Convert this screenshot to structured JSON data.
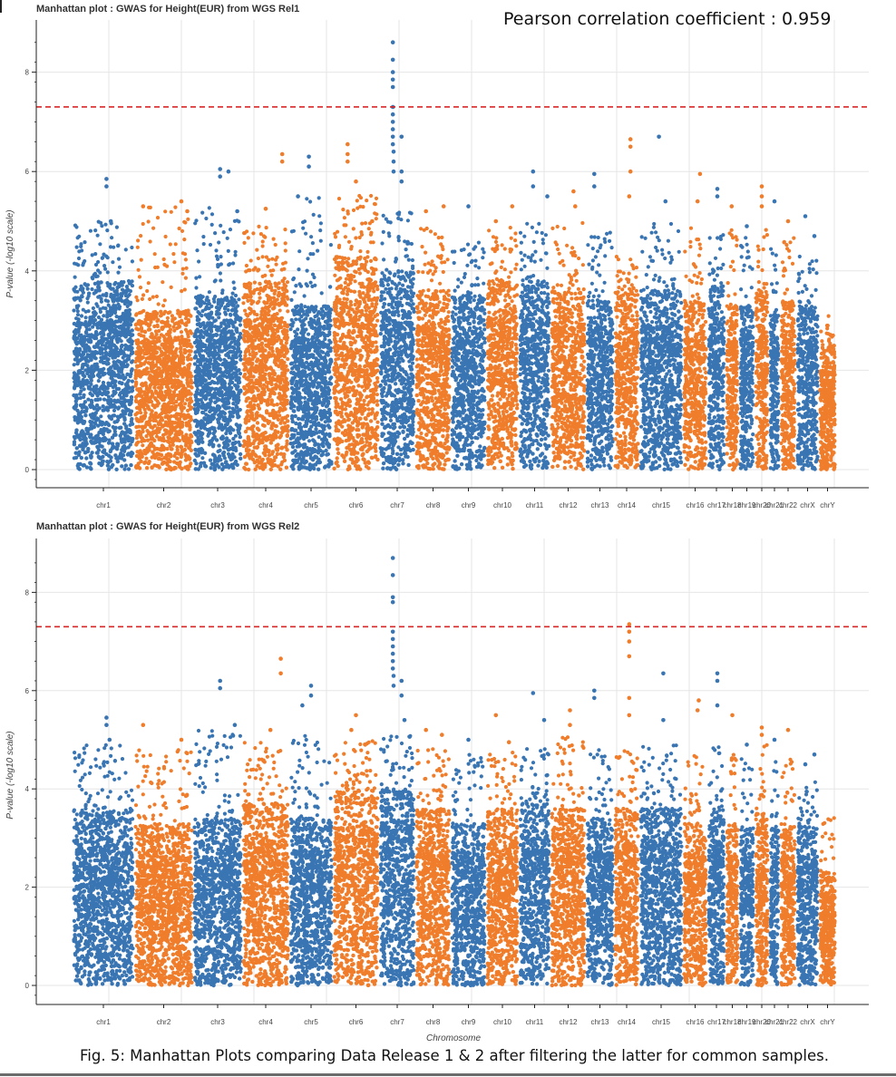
{
  "correlation_text": "Pearson correlation coefficient : 0.959",
  "caption": "Fig. 5: Manhattan Plots comparing Data Release 1 & 2 after filtering the latter for common samples.",
  "colors": {
    "blue": "#3a75b3",
    "orange": "#ef7d2b",
    "threshold": "#d62728",
    "grid": "#e6e6e6",
    "axis": "#222222"
  },
  "chart_data": [
    {
      "type": "scatter",
      "title": "Manhattan plot : GWAS for Height(EUR) from WGS Rel1",
      "ylabel": "P-value (-log10 scale)",
      "xlabel": "",
      "ylim": [
        -0.2,
        8.8
      ],
      "yticks": [
        0,
        2,
        4,
        6,
        8
      ],
      "grid": true,
      "threshold": 7.3,
      "categories": [
        "chr1",
        "chr2",
        "chr3",
        "chr4",
        "chr5",
        "chr6",
        "chr7",
        "chr8",
        "chr9",
        "chr10",
        "chr11",
        "chr12",
        "chr13",
        "chr14",
        "chr15",
        "chr16",
        "chr17",
        "chr18",
        "chr19",
        "chr20",
        "chr21",
        "chr22",
        "chrX",
        "chrY"
      ],
      "series": [
        {
          "chr": "chr1",
          "bulk_max": 3.8,
          "tail_max": 5.0,
          "peaks": [
            [
              0.55,
              5.85
            ],
            [
              0.55,
              5.7
            ],
            [
              0.62,
              5.0
            ]
          ]
        },
        {
          "chr": "chr2",
          "bulk_max": 3.2,
          "tail_max": 5.3,
          "peaks": [
            [
              0.15,
              5.3
            ],
            [
              0.8,
              5.4
            ],
            [
              0.9,
              5.2
            ]
          ]
        },
        {
          "chr": "chr3",
          "bulk_max": 3.5,
          "tail_max": 5.3,
          "peaks": [
            [
              0.55,
              6.05
            ],
            [
              0.55,
              5.9
            ],
            [
              0.72,
              6.0
            ],
            [
              0.9,
              5.2
            ]
          ]
        },
        {
          "chr": "chr4",
          "bulk_max": 3.8,
          "tail_max": 4.9,
          "peaks": [
            [
              0.85,
              6.35
            ],
            [
              0.85,
              6.2
            ],
            [
              0.5,
              5.25
            ]
          ]
        },
        {
          "chr": "chr5",
          "bulk_max": 3.3,
          "tail_max": 5.5,
          "peaks": [
            [
              0.45,
              6.3
            ],
            [
              0.45,
              6.1
            ],
            [
              0.2,
              5.5
            ]
          ]
        },
        {
          "chr": "chr6",
          "bulk_max": 4.3,
          "tail_max": 5.6,
          "peaks": [
            [
              0.32,
              6.55
            ],
            [
              0.32,
              6.35
            ],
            [
              0.32,
              6.2
            ],
            [
              0.5,
              5.8
            ],
            [
              0.85,
              5.0
            ]
          ]
        },
        {
          "chr": "chr7",
          "bulk_max": 4.0,
          "tail_max": 5.2,
          "peaks": [
            [
              0.38,
              8.6
            ],
            [
              0.38,
              8.25
            ],
            [
              0.38,
              8.0
            ],
            [
              0.38,
              7.85
            ],
            [
              0.38,
              7.7
            ],
            [
              0.38,
              7.3
            ],
            [
              0.38,
              7.15
            ],
            [
              0.38,
              7.0
            ],
            [
              0.38,
              6.85
            ],
            [
              0.38,
              6.7
            ],
            [
              0.38,
              6.55
            ],
            [
              0.4,
              6.4
            ],
            [
              0.4,
              6.2
            ],
            [
              0.4,
              6.0
            ],
            [
              0.62,
              6.7
            ],
            [
              0.62,
              6.0
            ],
            [
              0.62,
              5.8
            ]
          ]
        },
        {
          "chr": "chr8",
          "bulk_max": 3.6,
          "tail_max": 4.9,
          "peaks": [
            [
              0.3,
              5.2
            ],
            [
              0.8,
              5.3
            ]
          ]
        },
        {
          "chr": "chr9",
          "bulk_max": 3.5,
          "tail_max": 4.6,
          "peaks": [
            [
              0.5,
              5.3
            ]
          ]
        },
        {
          "chr": "chr10",
          "bulk_max": 3.8,
          "tail_max": 4.9,
          "peaks": [
            [
              0.3,
              5.0
            ],
            [
              0.8,
              5.3
            ]
          ]
        },
        {
          "chr": "chr11",
          "bulk_max": 3.8,
          "tail_max": 5.0,
          "peaks": [
            [
              0.45,
              6.0
            ],
            [
              0.45,
              5.7
            ],
            [
              0.9,
              5.5
            ]
          ]
        },
        {
          "chr": "chr12",
          "bulk_max": 3.6,
          "tail_max": 5.0,
          "peaks": [
            [
              0.65,
              5.6
            ],
            [
              0.7,
              5.3
            ]
          ]
        },
        {
          "chr": "chr13",
          "bulk_max": 3.5,
          "tail_max": 4.8,
          "peaks": [
            [
              0.3,
              5.95
            ],
            [
              0.3,
              5.7
            ]
          ]
        },
        {
          "chr": "chr14",
          "bulk_max": 3.6,
          "tail_max": 4.3,
          "peaks": [
            [
              0.65,
              6.65
            ],
            [
              0.65,
              6.5
            ],
            [
              0.65,
              6.0
            ],
            [
              0.6,
              5.5
            ]
          ]
        },
        {
          "chr": "chr15",
          "bulk_max": 3.6,
          "tail_max": 5.0,
          "peaks": [
            [
              0.45,
              6.7
            ],
            [
              0.6,
              5.4
            ]
          ]
        },
        {
          "chr": "chr16",
          "bulk_max": 3.4,
          "tail_max": 4.9,
          "peaks": [
            [
              0.7,
              5.95
            ],
            [
              0.6,
              5.4
            ]
          ]
        },
        {
          "chr": "chr17",
          "bulk_max": 3.7,
          "tail_max": 5.0,
          "peaks": [
            [
              0.55,
              5.65
            ],
            [
              0.55,
              5.5
            ]
          ]
        },
        {
          "chr": "chr18",
          "bulk_max": 3.3,
          "tail_max": 5.0,
          "peaks": [
            [
              0.45,
              5.3
            ]
          ]
        },
        {
          "chr": "chr19",
          "bulk_max": 3.3,
          "tail_max": 4.7,
          "peaks": [
            [
              0.5,
              4.9
            ]
          ]
        },
        {
          "chr": "chr20",
          "bulk_max": 3.6,
          "tail_max": 5.0,
          "peaks": [
            [
              0.5,
              5.7
            ],
            [
              0.5,
              5.5
            ],
            [
              0.5,
              5.3
            ]
          ]
        },
        {
          "chr": "chr21",
          "bulk_max": 3.2,
          "tail_max": 4.7,
          "peaks": [
            [
              0.5,
              5.4
            ]
          ]
        },
        {
          "chr": "chr22",
          "bulk_max": 3.4,
          "tail_max": 4.7,
          "peaks": [
            [
              0.5,
              5.0
            ]
          ]
        },
        {
          "chr": "chrX",
          "bulk_max": 3.3,
          "tail_max": 4.3,
          "peaks": [
            [
              0.4,
              5.1
            ],
            [
              0.8,
              4.7
            ]
          ]
        },
        {
          "chr": "chrY",
          "bulk_max": 2.5,
          "tail_max": 3.2,
          "peaks": [
            [
              0.5,
              0.8
            ],
            [
              0.5,
              0.6
            ],
            [
              0.5,
              0.3
            ],
            [
              0.5,
              0.1
            ]
          ]
        }
      ]
    },
    {
      "type": "scatter",
      "title": "Manhattan plot : GWAS for Height(EUR) from WGS Rel2",
      "ylabel": "P-value (-log10 scale)",
      "xlabel": "Chromosome",
      "ylim": [
        -0.2,
        8.8
      ],
      "yticks": [
        0,
        2,
        4,
        6,
        8
      ],
      "grid": true,
      "threshold": 7.3,
      "categories": [
        "chr1",
        "chr2",
        "chr3",
        "chr4",
        "chr5",
        "chr6",
        "chr7",
        "chr8",
        "chr9",
        "chr10",
        "chr11",
        "chr12",
        "chr13",
        "chr14",
        "chr15",
        "chr16",
        "chr17",
        "chr18",
        "chr19",
        "chr20",
        "chr21",
        "chr22",
        "chrX",
        "chrY"
      ],
      "series": [
        {
          "chr": "chr1",
          "bulk_max": 3.6,
          "tail_max": 4.9,
          "peaks": [
            [
              0.55,
              5.45
            ],
            [
              0.55,
              5.3
            ],
            [
              0.6,
              5.0
            ]
          ]
        },
        {
          "chr": "chr2",
          "bulk_max": 3.3,
          "tail_max": 4.8,
          "peaks": [
            [
              0.15,
              5.3
            ],
            [
              0.8,
              5.0
            ]
          ]
        },
        {
          "chr": "chr3",
          "bulk_max": 3.4,
          "tail_max": 5.2,
          "peaks": [
            [
              0.55,
              6.2
            ],
            [
              0.55,
              6.05
            ],
            [
              0.85,
              5.3
            ]
          ]
        },
        {
          "chr": "chr4",
          "bulk_max": 3.7,
          "tail_max": 5.0,
          "peaks": [
            [
              0.82,
              6.65
            ],
            [
              0.82,
              6.35
            ],
            [
              0.6,
              5.2
            ]
          ]
        },
        {
          "chr": "chr5",
          "bulk_max": 3.4,
          "tail_max": 5.2,
          "peaks": [
            [
              0.5,
              6.1
            ],
            [
              0.5,
              5.9
            ],
            [
              0.3,
              5.7
            ]
          ]
        },
        {
          "chr": "chr6",
          "bulk_max": 4.0,
          "tail_max": 5.0,
          "peaks": [
            [
              0.5,
              5.5
            ],
            [
              0.4,
              5.2
            ],
            [
              0.7,
              4.9
            ]
          ]
        },
        {
          "chr": "chr7",
          "bulk_max": 4.0,
          "tail_max": 5.2,
          "peaks": [
            [
              0.38,
              8.7
            ],
            [
              0.38,
              8.35
            ],
            [
              0.38,
              7.9
            ],
            [
              0.38,
              7.8
            ],
            [
              0.38,
              7.2
            ],
            [
              0.38,
              7.05
            ],
            [
              0.38,
              6.9
            ],
            [
              0.38,
              6.75
            ],
            [
              0.38,
              6.6
            ],
            [
              0.38,
              6.45
            ],
            [
              0.4,
              6.3
            ],
            [
              0.4,
              6.1
            ],
            [
              0.62,
              6.2
            ],
            [
              0.62,
              5.9
            ],
            [
              0.7,
              5.4
            ]
          ]
        },
        {
          "chr": "chr8",
          "bulk_max": 3.6,
          "tail_max": 4.9,
          "peaks": [
            [
              0.3,
              5.2
            ],
            [
              0.75,
              5.1
            ]
          ]
        },
        {
          "chr": "chr9",
          "bulk_max": 3.3,
          "tail_max": 4.7,
          "peaks": [
            [
              0.5,
              5.0
            ]
          ]
        },
        {
          "chr": "chr10",
          "bulk_max": 3.6,
          "tail_max": 4.8,
          "peaks": [
            [
              0.3,
              5.5
            ],
            [
              0.7,
              4.95
            ]
          ]
        },
        {
          "chr": "chr11",
          "bulk_max": 3.8,
          "tail_max": 4.9,
          "peaks": [
            [
              0.45,
              5.95
            ],
            [
              0.8,
              5.4
            ]
          ]
        },
        {
          "chr": "chr12",
          "bulk_max": 3.6,
          "tail_max": 5.1,
          "peaks": [
            [
              0.55,
              5.6
            ],
            [
              0.55,
              5.3
            ]
          ]
        },
        {
          "chr": "chr13",
          "bulk_max": 3.4,
          "tail_max": 4.8,
          "peaks": [
            [
              0.3,
              6.0
            ],
            [
              0.3,
              5.85
            ]
          ]
        },
        {
          "chr": "chr14",
          "bulk_max": 3.6,
          "tail_max": 4.8,
          "peaks": [
            [
              0.6,
              7.35
            ],
            [
              0.6,
              7.2
            ],
            [
              0.6,
              7.0
            ],
            [
              0.6,
              6.7
            ],
            [
              0.6,
              5.85
            ],
            [
              0.6,
              5.5
            ]
          ]
        },
        {
          "chr": "chr15",
          "bulk_max": 3.6,
          "tail_max": 4.9,
          "peaks": [
            [
              0.55,
              6.35
            ],
            [
              0.55,
              5.4
            ]
          ]
        },
        {
          "chr": "chr16",
          "bulk_max": 3.3,
          "tail_max": 4.7,
          "peaks": [
            [
              0.65,
              5.8
            ],
            [
              0.6,
              5.6
            ]
          ]
        },
        {
          "chr": "chr17",
          "bulk_max": 3.6,
          "tail_max": 4.9,
          "peaks": [
            [
              0.55,
              6.35
            ],
            [
              0.55,
              6.2
            ],
            [
              0.55,
              5.7
            ]
          ]
        },
        {
          "chr": "chr18",
          "bulk_max": 3.3,
          "tail_max": 4.8,
          "peaks": [
            [
              0.5,
              5.5
            ]
          ]
        },
        {
          "chr": "chr19",
          "bulk_max": 3.2,
          "tail_max": 4.7,
          "peaks": [
            [
              0.5,
              4.9
            ]
          ]
        },
        {
          "chr": "chr20",
          "bulk_max": 3.5,
          "tail_max": 4.9,
          "peaks": [
            [
              0.5,
              5.25
            ],
            [
              0.5,
              5.1
            ]
          ]
        },
        {
          "chr": "chr21",
          "bulk_max": 3.2,
          "tail_max": 4.6,
          "peaks": [
            [
              0.5,
              5.0
            ]
          ]
        },
        {
          "chr": "chr22",
          "bulk_max": 3.3,
          "tail_max": 4.6,
          "peaks": [
            [
              0.5,
              5.2
            ]
          ]
        },
        {
          "chr": "chrX",
          "bulk_max": 3.3,
          "tail_max": 4.3,
          "peaks": [
            [
              0.4,
              4.5
            ],
            [
              0.8,
              4.7
            ]
          ]
        },
        {
          "chr": "chrY",
          "bulk_max": 2.3,
          "tail_max": 3.5,
          "peaks": [
            [
              0.5,
              0.9
            ],
            [
              0.5,
              0.7
            ],
            [
              0.5,
              0.5
            ],
            [
              0.5,
              0.2
            ]
          ]
        }
      ]
    }
  ]
}
